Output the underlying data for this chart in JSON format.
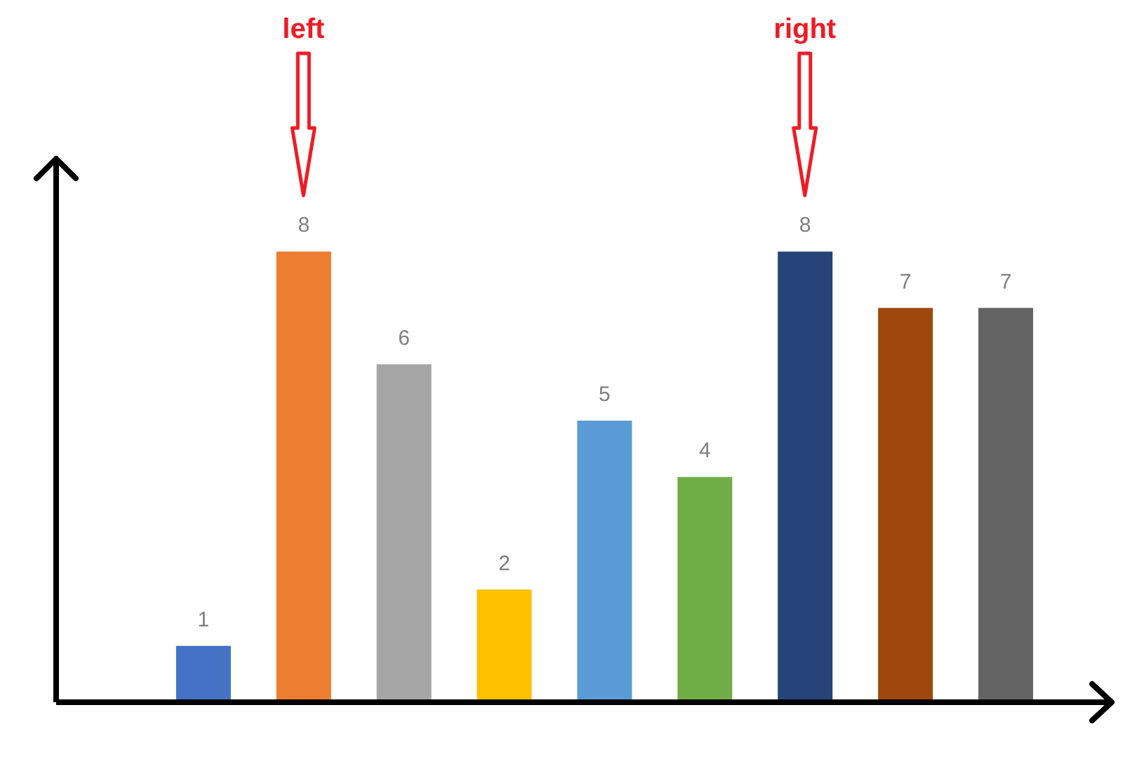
{
  "chart_data": {
    "type": "bar",
    "categories": [
      null,
      null,
      null,
      null,
      null,
      null,
      null,
      null,
      null
    ],
    "values": [
      1,
      8,
      6,
      2,
      5,
      4,
      8,
      7,
      7
    ],
    "colors": [
      "#4472c4",
      "#ed7d31",
      "#a5a5a5",
      "#ffc000",
      "#5b9bd5",
      "#70ad47",
      "#264478",
      "#9e480e",
      "#636363"
    ],
    "data_labels": true,
    "grid": false,
    "legend": false,
    "tick_labels": false,
    "annotations": [
      "left",
      "right"
    ]
  }
}
